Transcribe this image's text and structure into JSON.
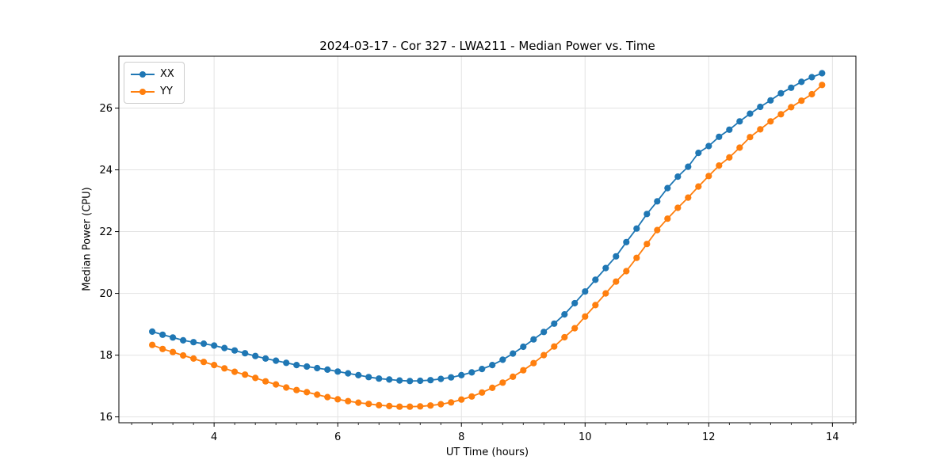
{
  "figure": {
    "title": "2024-03-17 - Cor 327 - LWA211 - Median Power vs. Time",
    "xlabel": "UT Time (hours)",
    "ylabel": "Median Power (CPU)"
  },
  "legend": {
    "items": [
      {
        "label": "XX",
        "color": "#1f77b4"
      },
      {
        "label": "YY",
        "color": "#ff7f0e"
      }
    ]
  },
  "chart_data": {
    "type": "line",
    "title": "2024-03-17 - Cor 327 - LWA211 - Median Power vs. Time",
    "xlabel": "UT Time (hours)",
    "ylabel": "Median Power (CPU)",
    "xlim": [
      2.46,
      14.38
    ],
    "ylim": [
      15.81,
      27.68
    ],
    "xticks": [
      4,
      6,
      8,
      10,
      12,
      14
    ],
    "yticks": [
      16,
      18,
      20,
      22,
      24,
      26
    ],
    "x_minor_tick_step": 0.3333,
    "grid": true,
    "legend_position": "upper-left",
    "marker": "circle",
    "x": [
      3.0,
      3.167,
      3.333,
      3.5,
      3.667,
      3.833,
      4.0,
      4.167,
      4.333,
      4.5,
      4.667,
      4.833,
      5.0,
      5.167,
      5.333,
      5.5,
      5.667,
      5.833,
      6.0,
      6.167,
      6.333,
      6.5,
      6.667,
      6.833,
      7.0,
      7.167,
      7.333,
      7.5,
      7.667,
      7.833,
      8.0,
      8.167,
      8.333,
      8.5,
      8.667,
      8.833,
      9.0,
      9.167,
      9.333,
      9.5,
      9.667,
      9.833,
      10.0,
      10.167,
      10.333,
      10.5,
      10.667,
      10.833,
      11.0,
      11.167,
      11.333,
      11.5,
      11.667,
      11.833,
      12.0,
      12.167,
      12.333,
      12.5,
      12.667,
      12.833,
      13.0,
      13.167,
      13.333,
      13.5,
      13.667,
      13.833
    ],
    "series": [
      {
        "name": "XX",
        "color": "#1f77b4",
        "values": [
          18.76,
          18.66,
          18.57,
          18.48,
          18.42,
          18.37,
          18.31,
          18.23,
          18.15,
          18.06,
          17.97,
          17.89,
          17.82,
          17.75,
          17.68,
          17.63,
          17.58,
          17.53,
          17.47,
          17.41,
          17.35,
          17.29,
          17.24,
          17.21,
          17.18,
          17.16,
          17.17,
          17.19,
          17.23,
          17.28,
          17.35,
          17.44,
          17.55,
          17.68,
          17.85,
          18.05,
          18.27,
          18.51,
          18.75,
          19.02,
          19.32,
          19.68,
          20.06,
          20.44,
          20.82,
          21.2,
          21.66,
          22.1,
          22.57,
          22.98,
          23.41,
          23.78,
          24.1,
          24.55,
          24.77,
          25.07,
          25.3,
          25.57,
          25.82,
          26.04,
          26.25,
          26.48,
          26.66,
          26.85,
          27.0,
          27.13
        ]
      },
      {
        "name": "YY",
        "color": "#ff7f0e",
        "values": [
          18.33,
          18.2,
          18.1,
          17.99,
          17.89,
          17.78,
          17.68,
          17.57,
          17.46,
          17.37,
          17.26,
          17.15,
          17.05,
          16.95,
          16.87,
          16.8,
          16.72,
          16.64,
          16.57,
          16.51,
          16.46,
          16.42,
          16.38,
          16.35,
          16.33,
          16.33,
          16.34,
          16.37,
          16.41,
          16.47,
          16.56,
          16.66,
          16.79,
          16.94,
          17.11,
          17.3,
          17.51,
          17.74,
          18.0,
          18.28,
          18.58,
          18.87,
          19.25,
          19.62,
          20.0,
          20.38,
          20.72,
          21.15,
          21.6,
          22.05,
          22.42,
          22.77,
          23.1,
          23.46,
          23.8,
          24.14,
          24.4,
          24.72,
          25.06,
          25.31,
          25.57,
          25.8,
          26.03,
          26.24,
          26.45,
          26.75
        ]
      }
    ]
  }
}
